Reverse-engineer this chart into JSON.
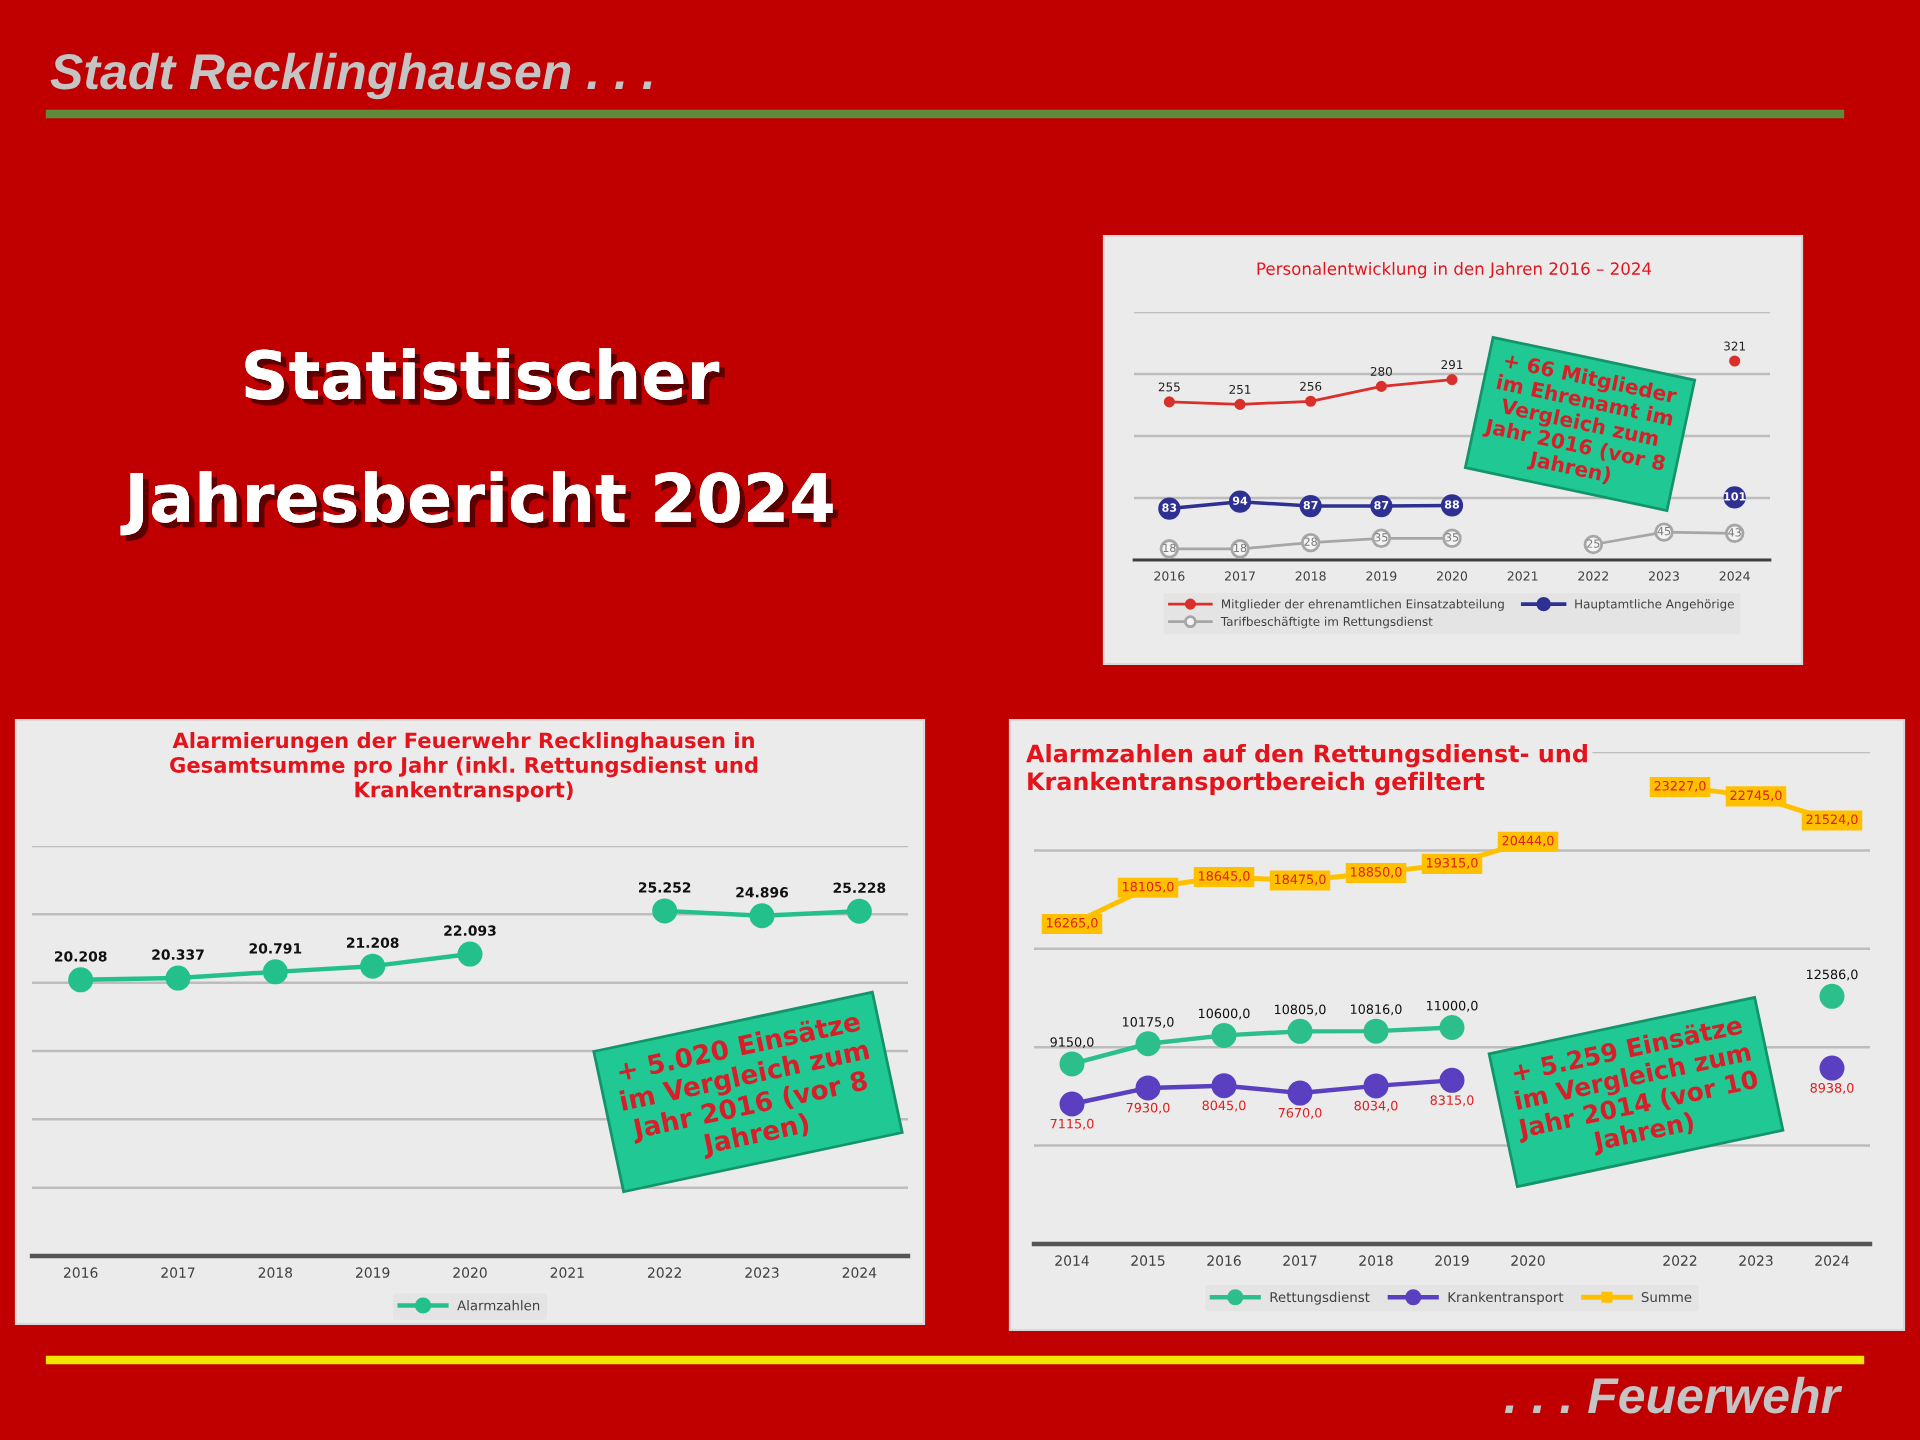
{
  "chart_data": [
    {
      "type": "other",
      "title": "Statistischer\nJahresbericht 2024",
      "annotations": [
        "Stadt Recklinghausen . . .",
        ". . . Feuerwehr"
      ]
    },
    {
      "type": "line",
      "title": "Personalentwicklung in den Jahren 2016 – 2024",
      "categories": [
        "2016",
        "2017",
        "2018",
        "2019",
        "2020",
        "2021",
        "2022",
        "2023",
        "2024"
      ],
      "series": [
        {
          "name": "Mitglieder der ehrenamtlichen Einsatzabteilung",
          "color": "#d9302b",
          "marker": "circle",
          "values": [
            255,
            251,
            256,
            280,
            291,
            null,
            null,
            null,
            321
          ]
        },
        {
          "name": "Hauptamtliche Angehörige",
          "color": "#2e3192",
          "marker": "circle",
          "values": [
            83,
            94,
            87,
            87,
            88,
            null,
            null,
            null,
            101
          ]
        },
        {
          "name": "Tarifbeschäftigte im Rettungsdienst",
          "color": "#a6a6a6",
          "marker": "circle",
          "values": [
            18,
            18,
            28,
            35,
            35,
            null,
            25,
            45,
            43
          ]
        }
      ],
      "ylim": [
        0,
        400
      ],
      "yticks": [
        {
          "value": 0,
          "label": null
        },
        {
          "value": 100,
          "label": null
        },
        {
          "value": 200,
          "label": null
        },
        {
          "value": 300,
          "label": null
        },
        {
          "value": 400,
          "label": null
        }
      ],
      "tick_labels": "x",
      "grid": "y",
      "legend": "bottom",
      "data_labels": true,
      "annotations": [
        "+ 66 Mitglieder\nim Ehrenamt im\nVergleich zum\nJahr 2016 (vor 8\nJahren)"
      ]
    },
    {
      "type": "line",
      "title": "Alarmierungen der Feuerwehr Recklinghausen in\nGesamtsumme pro Jahr (inkl. Rettungsdienst und\nKrankentransport)",
      "categories": [
        "2016",
        "2017",
        "2018",
        "2019",
        "2020",
        "2021",
        "2022",
        "2023",
        "2024"
      ],
      "series": [
        {
          "name": "Alarmzahlen",
          "color": "#23c08c",
          "marker": "circle",
          "values": [
            20208,
            20337,
            20791,
            21208,
            22093,
            null,
            25252,
            24896,
            25228
          ],
          "value_labels": [
            "20.208",
            "20.337",
            "20.791",
            "21.208",
            "22.093",
            null,
            "25.252",
            "24.896",
            "25.228"
          ]
        }
      ],
      "ylim": [
        0,
        30000
      ],
      "yticks": [
        {
          "value": 0,
          "label": null
        },
        {
          "value": 5000,
          "label": null
        },
        {
          "value": 10000,
          "label": null
        },
        {
          "value": 15000,
          "label": null
        },
        {
          "value": 20000,
          "label": null
        },
        {
          "value": 25000,
          "label": null
        },
        {
          "value": 30000,
          "label": null
        }
      ],
      "tick_labels": "x",
      "grid": "y",
      "legend": "bottom",
      "annotations": [
        "+ 5.020 Einsätze\nim Vergleich zum\nJahr 2016 (vor 8\nJahren)"
      ]
    },
    {
      "type": "line",
      "title": "Alarmzahlen auf den Rettungsdienst- und\nKrankentransportbereich gefiltert",
      "categories": [
        "2014",
        "2015",
        "2016",
        "2017",
        "2018",
        "2019",
        "2020",
        null,
        "2022",
        "2023",
        "2024"
      ],
      "series": [
        {
          "name": "Rettungsdienst",
          "color": "#2dbf8b",
          "marker": "circle",
          "values": [
            9150,
            10175,
            10600,
            10805,
            10816,
            11000,
            null,
            null,
            null,
            null,
            12586
          ],
          "value_labels": [
            "9150,0",
            "10175,0",
            "10600,0",
            "10805,0",
            "10816,0",
            "11000,0",
            null,
            null,
            null,
            null,
            "12586,0"
          ]
        },
        {
          "name": "Krankentransport",
          "color": "#5a3fc0",
          "marker": "circle",
          "values": [
            7115,
            7930,
            8045,
            7670,
            8034,
            8315,
            null,
            null,
            null,
            null,
            8938
          ],
          "value_labels": [
            "7115,0",
            "7930,0",
            "8045,0",
            "7670,0",
            "8034,0",
            "8315,0",
            null,
            null,
            null,
            null,
            "8938,0"
          ]
        },
        {
          "name": "Summe",
          "color": "#ffc000",
          "marker": "square",
          "values": [
            16265,
            18105,
            18645,
            18475,
            18850,
            19315,
            20444,
            null,
            23227,
            22745,
            21524
          ],
          "value_labels": [
            "16265,0",
            "18105,0",
            "18645,0",
            "18475,0",
            "18850,0",
            "19315,0",
            "20444,0",
            null,
            "23227,0",
            "22745,0",
            "21524,0"
          ]
        }
      ],
      "ylim": [
        0,
        25000
      ],
      "yticks": [
        {
          "value": 0,
          "label": null
        },
        {
          "value": 5000,
          "label": null
        },
        {
          "value": 10000,
          "label": null
        },
        {
          "value": 15000,
          "label": null
        },
        {
          "value": 20000,
          "label": null
        },
        {
          "value": 25000,
          "label": null
        }
      ],
      "tick_labels": "x",
      "grid": "y",
      "legend": "bottom",
      "annotations": [
        "+ 5.259 Einsätze\nim Vergleich zum\nJahr 2014 (vor 10\nJahren)"
      ]
    }
  ]
}
